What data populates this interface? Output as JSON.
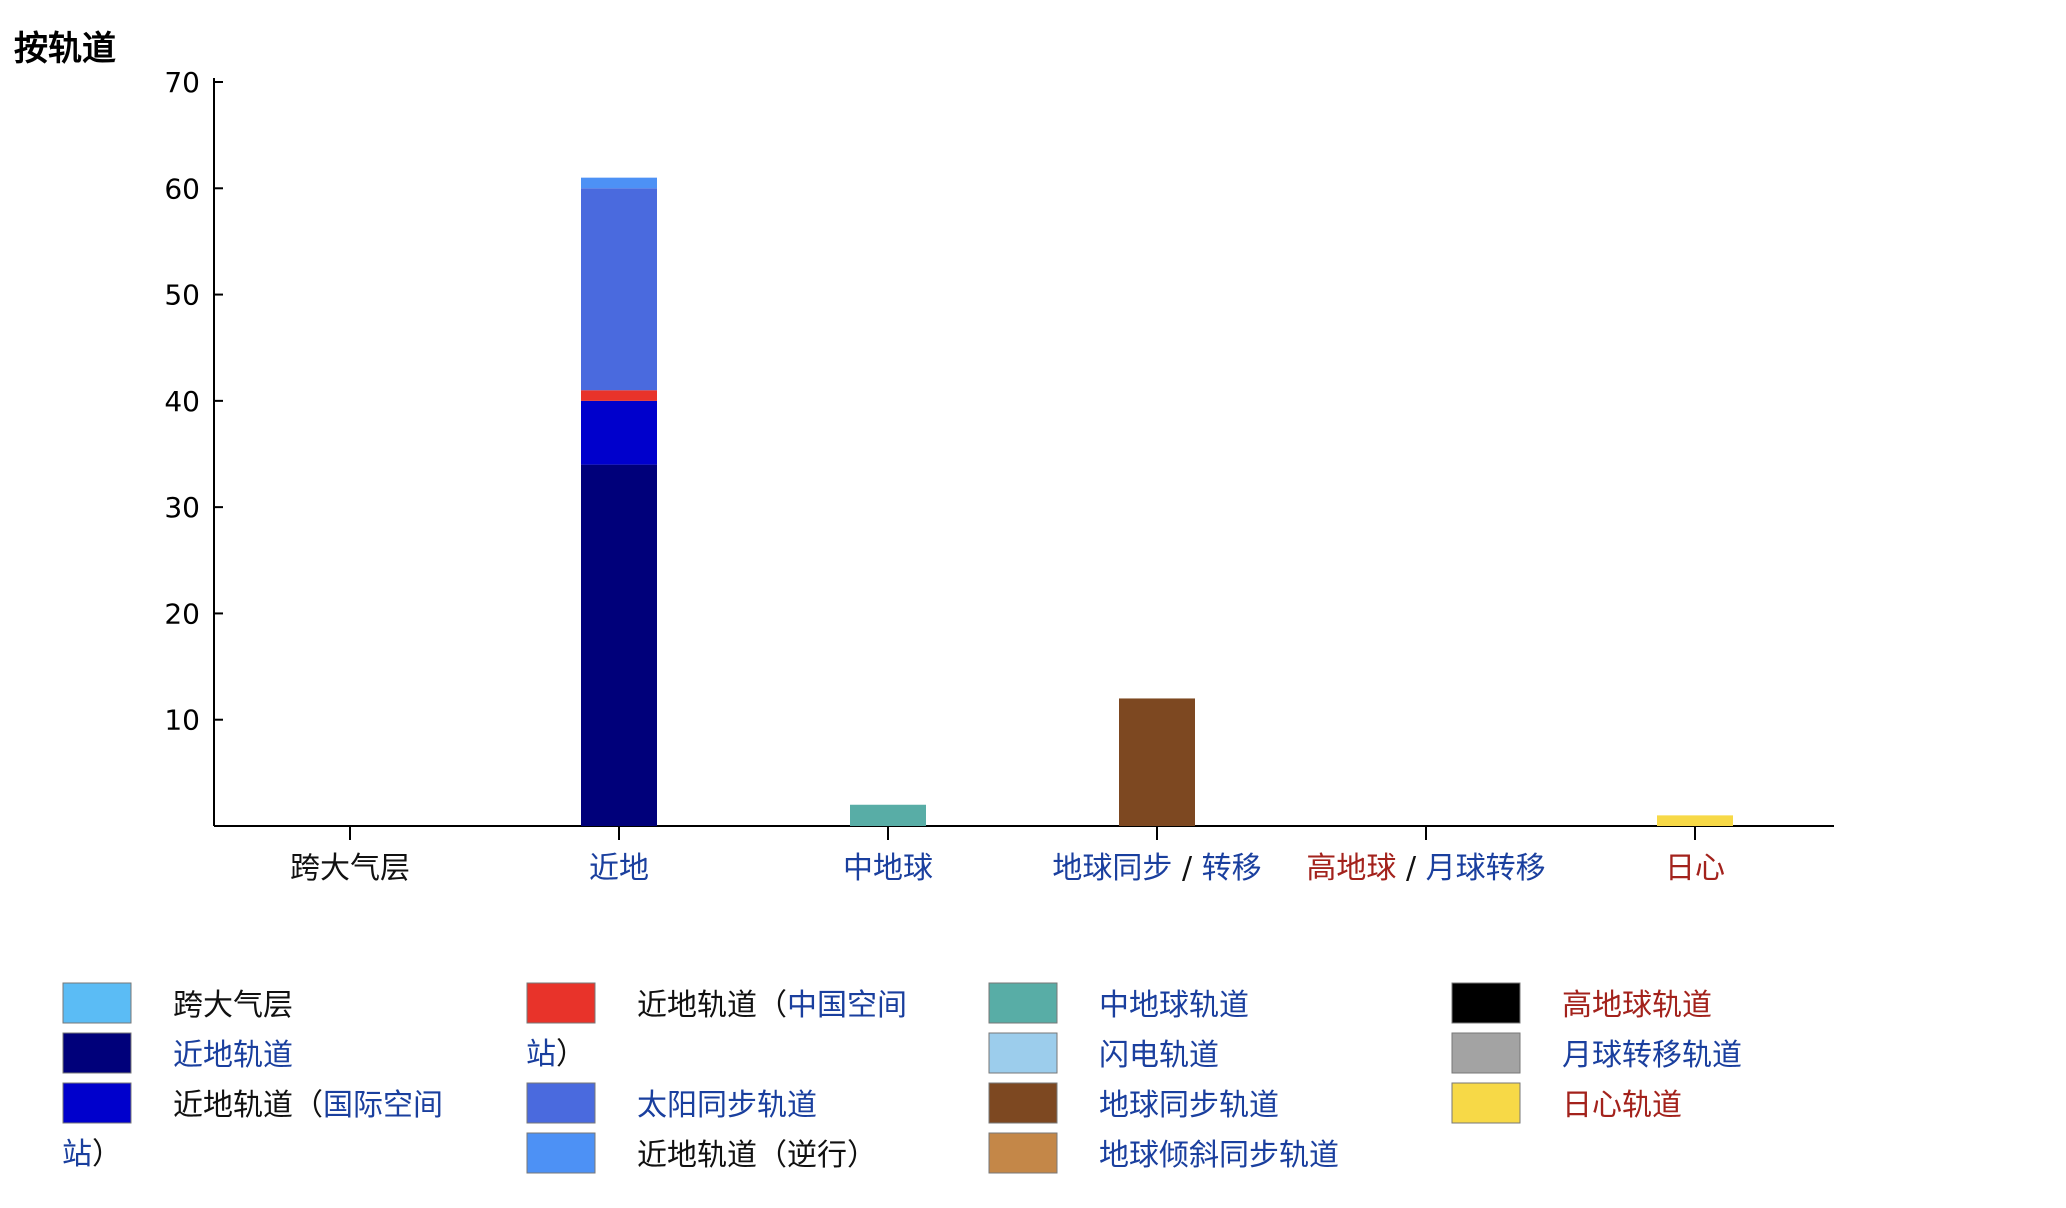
{
  "colors": {
    "black_text": "#111111",
    "blue_text": "#1a3f9e",
    "red_text": "#a3221c"
  },
  "chart_data": {
    "type": "bar",
    "stacked": true,
    "title": "按轨道",
    "xlabel": "",
    "ylabel": "",
    "ylim": [
      0,
      70
    ],
    "yticks": [
      10,
      20,
      30,
      40,
      50,
      60,
      70
    ],
    "grid": false,
    "legend_position": "bottom",
    "categories": [
      {
        "parts": [
          {
            "text": "跨大气层",
            "color": "black"
          }
        ]
      },
      {
        "parts": [
          {
            "text": "近地",
            "color": "blue"
          }
        ]
      },
      {
        "parts": [
          {
            "text": "中地球",
            "color": "blue"
          }
        ]
      },
      {
        "parts": [
          {
            "text": "地球同步",
            "color": "blue"
          },
          {
            "text": " / ",
            "color": "black"
          },
          {
            "text": "转移",
            "color": "blue"
          }
        ]
      },
      {
        "parts": [
          {
            "text": "高地球",
            "color": "red"
          },
          {
            "text": " / ",
            "color": "black"
          },
          {
            "text": "月球转移",
            "color": "blue"
          }
        ]
      },
      {
        "parts": [
          {
            "text": "日心",
            "color": "red"
          }
        ]
      }
    ],
    "series": [
      {
        "color": "#5bbcf5",
        "values": [
          0,
          0,
          0,
          0,
          0,
          0
        ]
      },
      {
        "color": "#00007a",
        "values": [
          0,
          34,
          0,
          0,
          0,
          0
        ]
      },
      {
        "color": "#0000cc",
        "values": [
          0,
          6,
          0,
          0,
          0,
          0
        ]
      },
      {
        "color": "#e8332a",
        "values": [
          0,
          1,
          0,
          0,
          0,
          0
        ]
      },
      {
        "color": "#4a6ade",
        "values": [
          0,
          19,
          0,
          0,
          0,
          0
        ]
      },
      {
        "color": "#4d91f5",
        "values": [
          0,
          1,
          0,
          0,
          0,
          0
        ]
      },
      {
        "color": "#58ada6",
        "values": [
          0,
          0,
          2,
          0,
          0,
          0
        ]
      },
      {
        "color": "#9ccdec",
        "values": [
          0,
          0,
          0,
          0,
          0,
          0
        ]
      },
      {
        "color": "#7d4821",
        "values": [
          0,
          0,
          0,
          12,
          0,
          0
        ]
      },
      {
        "color": "#c48748",
        "values": [
          0,
          0,
          0,
          0,
          0,
          0
        ]
      },
      {
        "color": "#000000",
        "values": [
          0,
          0,
          0,
          0,
          0,
          0
        ]
      },
      {
        "color": "#a3a3a3",
        "values": [
          0,
          0,
          0,
          0,
          0,
          0
        ]
      },
      {
        "color": "#f7d947",
        "values": [
          0,
          0,
          0,
          0,
          0,
          1
        ]
      }
    ],
    "legend": [
      {
        "series": 0,
        "lines": [
          [
            {
              "text": "跨大气层",
              "color": "black"
            }
          ]
        ]
      },
      {
        "series": 1,
        "lines": [
          [
            {
              "text": "近地轨道",
              "color": "blue"
            }
          ]
        ]
      },
      {
        "series": 2,
        "lines": [
          [
            {
              "text": "近地轨道（",
              "color": "black"
            },
            {
              "text": "国际空间",
              "color": "blue"
            }
          ],
          [
            {
              "text": "站",
              "color": "blue"
            },
            {
              "text": "）",
              "color": "black"
            }
          ]
        ]
      },
      {
        "series": 3,
        "lines": [
          [
            {
              "text": "近地轨道（",
              "color": "black"
            },
            {
              "text": "中国空间",
              "color": "blue"
            }
          ],
          [
            {
              "text": "站",
              "color": "blue"
            },
            {
              "text": "）",
              "color": "black"
            }
          ]
        ]
      },
      {
        "series": 4,
        "lines": [
          [
            {
              "text": "太阳同步轨道",
              "color": "blue"
            }
          ]
        ]
      },
      {
        "series": 5,
        "lines": [
          [
            {
              "text": "近地轨道（逆行）",
              "color": "black"
            }
          ]
        ]
      },
      {
        "series": 6,
        "lines": [
          [
            {
              "text": "中地球轨道",
              "color": "blue"
            }
          ]
        ]
      },
      {
        "series": 7,
        "lines": [
          [
            {
              "text": "闪电轨道",
              "color": "blue"
            }
          ]
        ]
      },
      {
        "series": 8,
        "lines": [
          [
            {
              "text": "地球同步轨道",
              "color": "blue"
            }
          ]
        ]
      },
      {
        "series": 9,
        "lines": [
          [
            {
              "text": "地球倾斜同步轨道",
              "color": "blue"
            }
          ]
        ]
      },
      {
        "series": 10,
        "lines": [
          [
            {
              "text": "高地球轨道",
              "color": "red"
            }
          ]
        ]
      },
      {
        "series": 11,
        "lines": [
          [
            {
              "text": "月球转移轨道",
              "color": "blue"
            }
          ]
        ]
      },
      {
        "series": 12,
        "lines": [
          [
            {
              "text": "日心轨道",
              "color": "red"
            }
          ]
        ]
      }
    ]
  }
}
